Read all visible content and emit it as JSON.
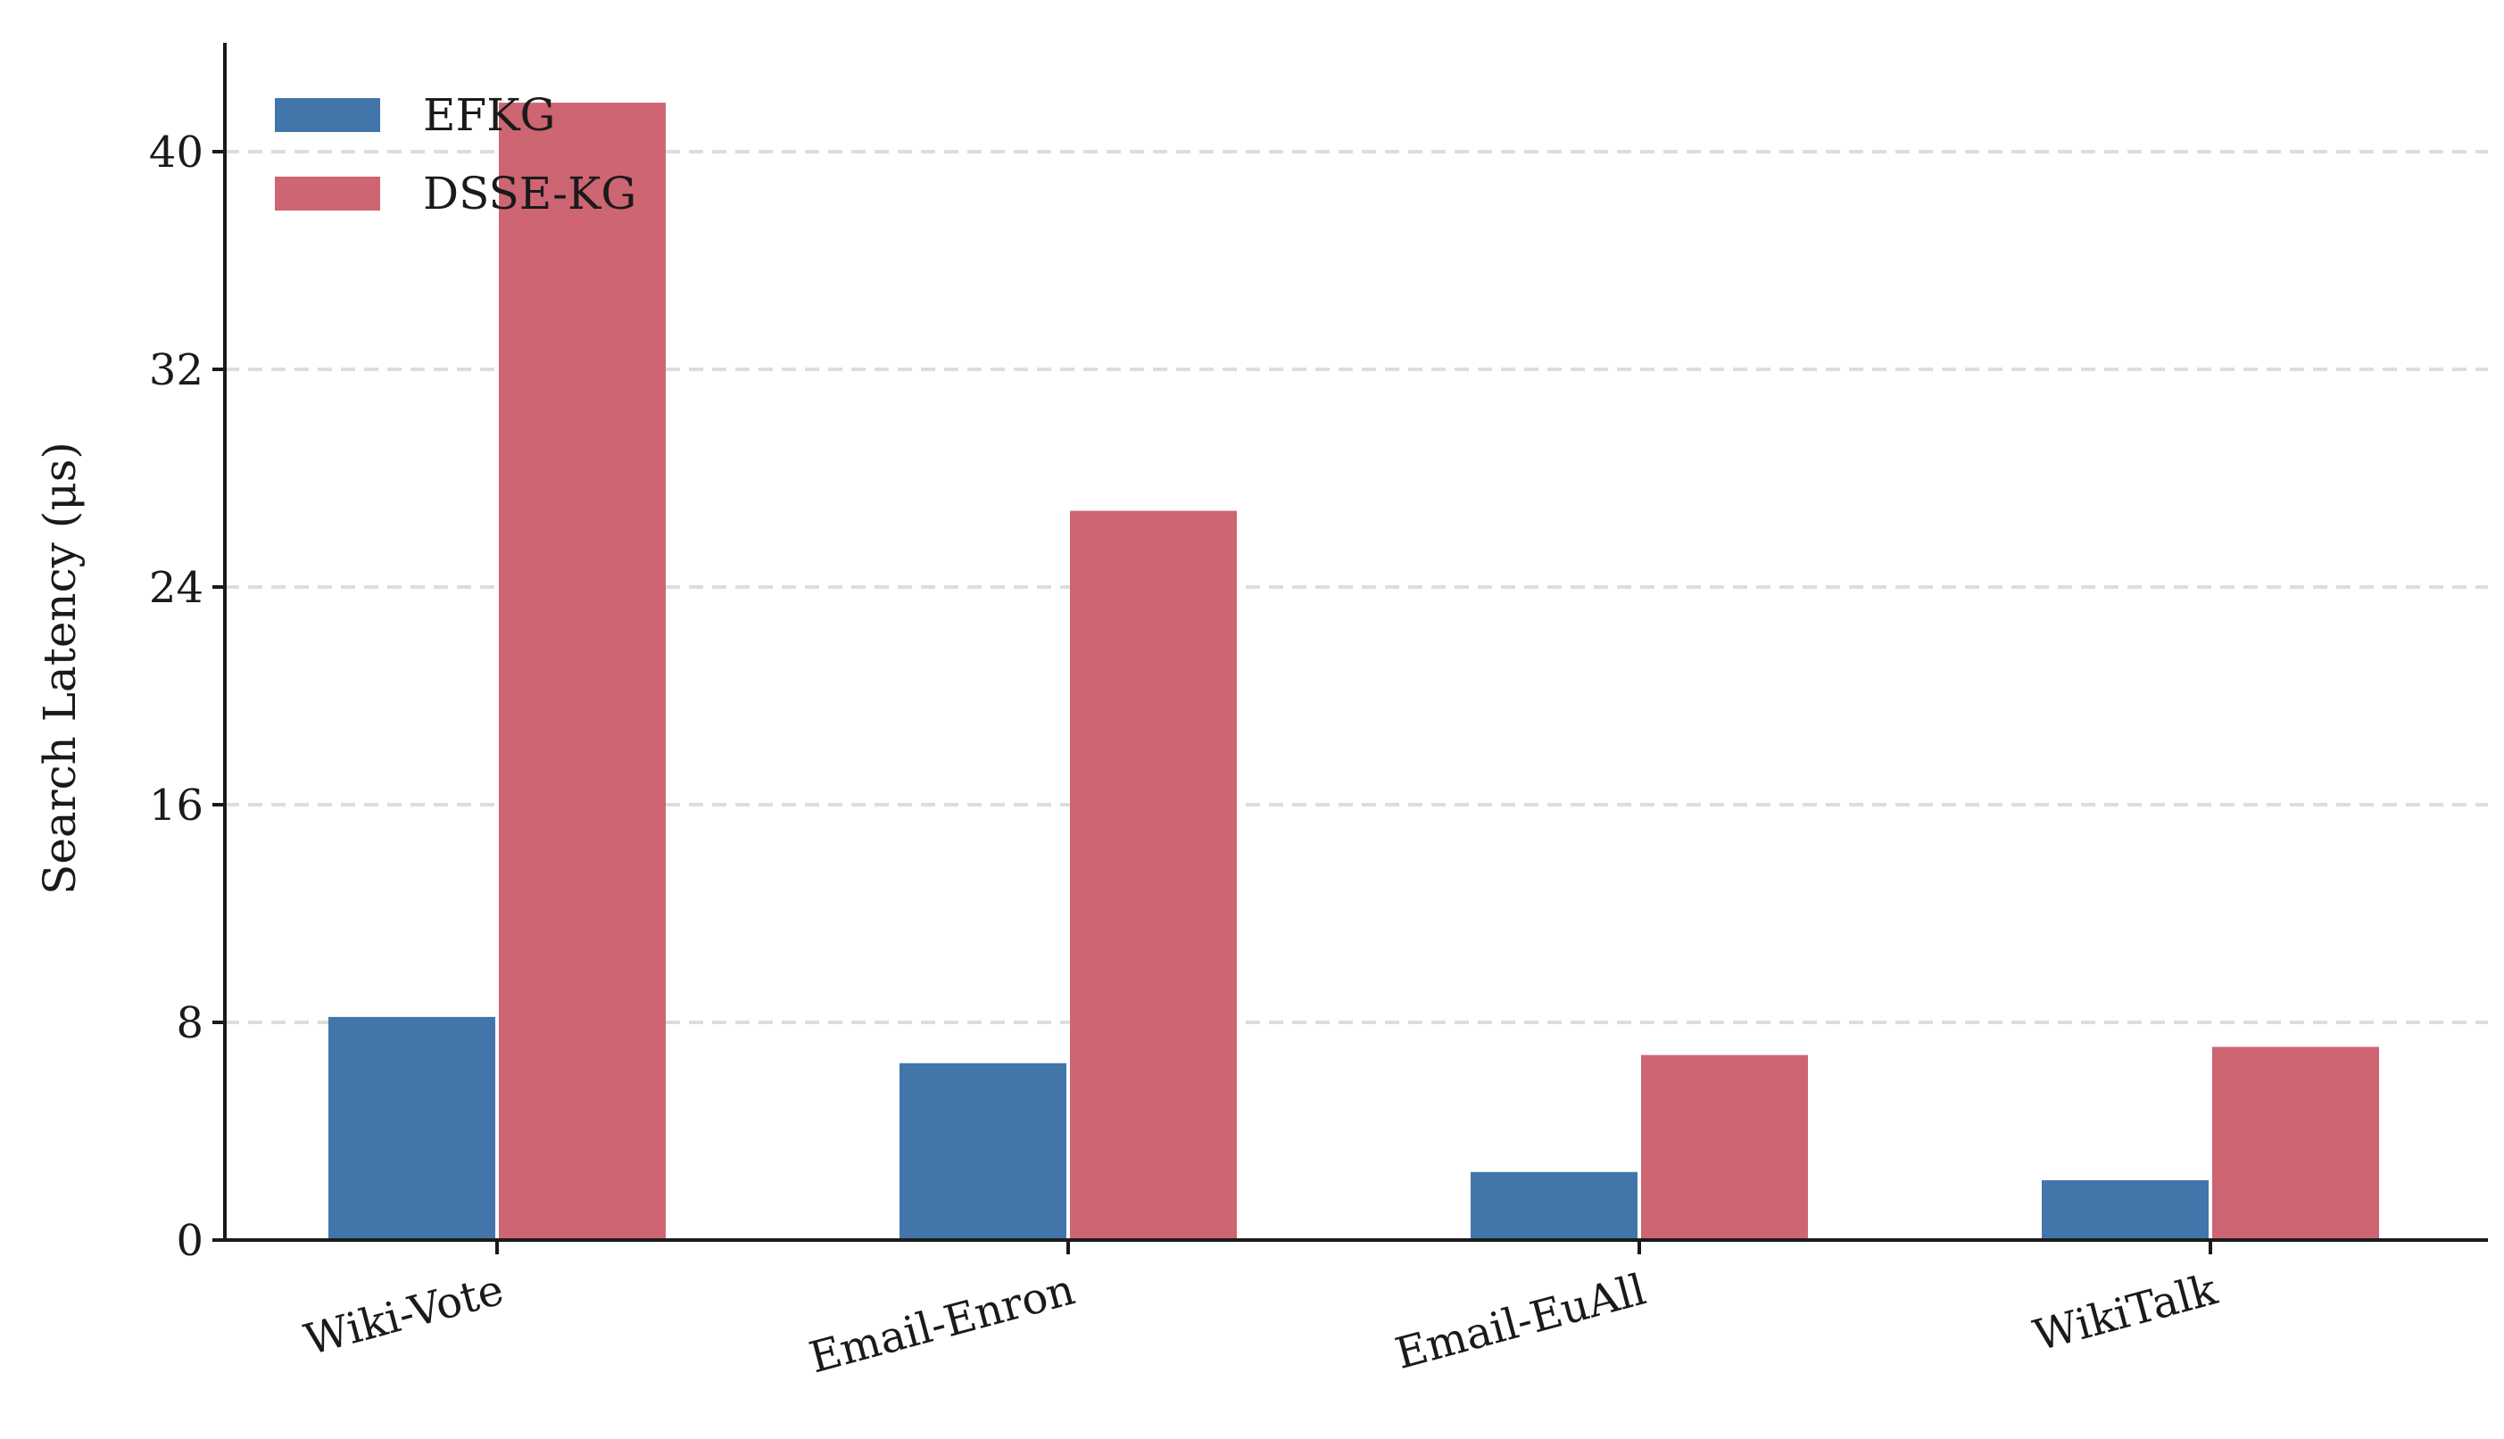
{
  "chart_data": {
    "type": "bar",
    "categories": [
      "Wiki-Vote",
      "Email-Enron",
      "Email-EuAll",
      "WikiTalk"
    ],
    "series": [
      {
        "name": "EFKG",
        "values": [
          8.2,
          6.5,
          2.5,
          2.2
        ],
        "color": "#4275a9"
      },
      {
        "name": "DSSE-KG",
        "values": [
          41.8,
          26.8,
          6.8,
          7.1
        ],
        "color": "#cd6573"
      }
    ],
    "title": "",
    "xlabel": "",
    "ylabel": "Search Latency (μs)",
    "ylim": [
      0,
      44
    ],
    "yticks": [
      0,
      8,
      16,
      24,
      32,
      40
    ],
    "ytick_labels": [
      "0",
      "8",
      "16",
      "24",
      "32",
      "40"
    ],
    "grid": "horizontal dashed",
    "legend_position": "top-left",
    "xtick_rotation": "slanted"
  }
}
